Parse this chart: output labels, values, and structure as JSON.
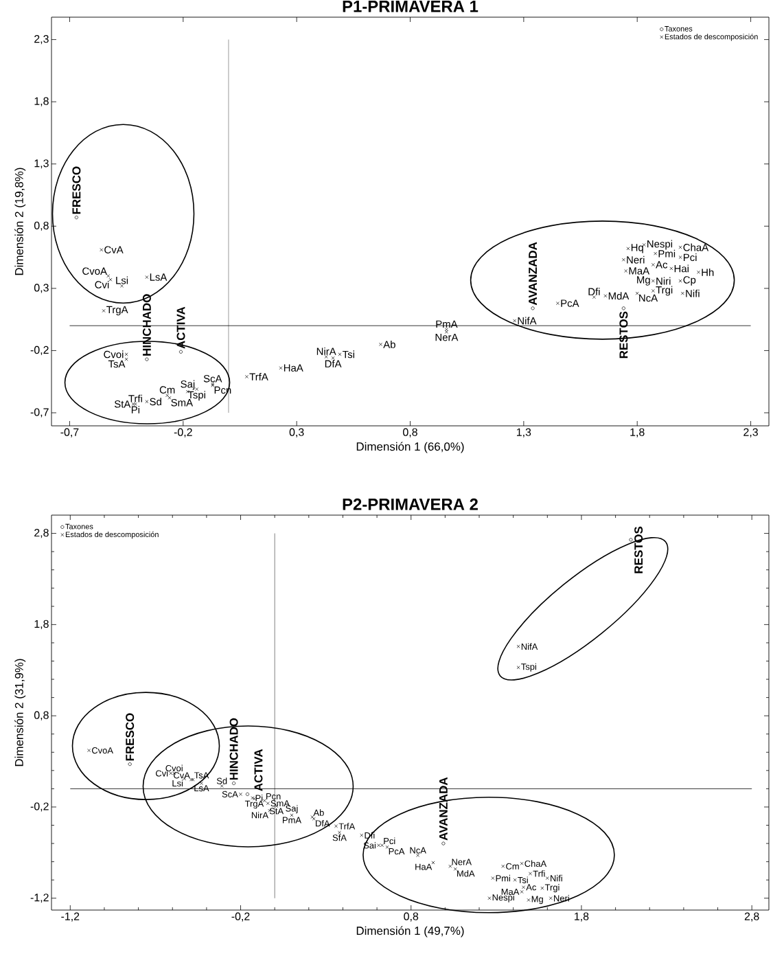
{
  "chart_data": [
    {
      "type": "scatter",
      "title": "P1-PRIMAVERA 1",
      "xlabel": "Dimensión 1 (66,0%)",
      "ylabel": "Dimensión 2 (19,8%)",
      "xlim": [
        -0.78,
        2.38
      ],
      "ylim": [
        -0.805,
        2.48
      ],
      "xticks": [
        {
          "value": -0.7,
          "label": "-0,7"
        },
        {
          "value": -0.2,
          "label": "-0,2"
        },
        {
          "value": 0.3,
          "label": "0,3"
        },
        {
          "value": 0.8,
          "label": "0,8"
        },
        {
          "value": 1.3,
          "label": "1,3"
        },
        {
          "value": 1.8,
          "label": "1,8"
        },
        {
          "value": 2.3,
          "label": "2,3"
        }
      ],
      "yticks": [
        {
          "value": -0.7,
          "label": "-0,7"
        },
        {
          "value": -0.2,
          "label": "-0,2"
        },
        {
          "value": 0.3,
          "label": "0,3"
        },
        {
          "value": 0.8,
          "label": "0,8"
        },
        {
          "value": 1.3,
          "label": "1,3"
        },
        {
          "value": 1.8,
          "label": "1,8"
        },
        {
          "value": 2.3,
          "label": "2,3"
        }
      ],
      "legend": "top right",
      "series": [
        {
          "name": "Taxones",
          "color": "#000000",
          "marker": "circle",
          "x": [
            -0.67,
            -0.36,
            -0.21,
            1.34,
            1.74
          ],
          "values": [
            0.87,
            -0.27,
            -0.21,
            0.14,
            0.14
          ]
        },
        {
          "name": "Estados de descomposición",
          "color": "#000000",
          "marker": "cross",
          "x": [
            -0.56,
            -0.53,
            -0.52,
            -0.47,
            -0.36,
            -0.55,
            -0.45,
            -0.45,
            -0.27,
            -0.26,
            -0.36,
            -0.18,
            -0.14,
            -0.07,
            -0.07,
            -0.42,
            -0.41,
            0.08,
            0.23,
            0.43,
            0.46,
            0.49,
            0.67,
            0.96,
            0.96,
            1.26,
            1.45,
            1.61,
            1.66,
            1.8,
            1.87,
            1.76,
            1.83,
            1.99,
            1.74,
            1.87,
            1.88,
            1.99,
            1.75,
            1.95,
            2.07,
            1.99,
            1.87,
            2.0
          ],
          "values": [
            0.61,
            0.4,
            0.37,
            0.32,
            0.39,
            0.12,
            -0.23,
            -0.27,
            -0.56,
            -0.58,
            -0.61,
            -0.53,
            -0.51,
            -0.47,
            -0.48,
            -0.63,
            -0.63,
            -0.41,
            -0.34,
            -0.25,
            -0.26,
            -0.23,
            -0.15,
            -0.03,
            -0.05,
            0.04,
            0.18,
            0.23,
            0.24,
            0.26,
            0.36,
            0.62,
            0.65,
            0.63,
            0.53,
            0.49,
            0.58,
            0.55,
            0.44,
            0.46,
            0.43,
            0.36,
            0.28,
            0.26
          ]
        }
      ],
      "ref_lines": [
        {
          "axis": "x",
          "value": 0,
          "color": "#808080"
        },
        {
          "axis": "y",
          "value": 0,
          "color": "#000000"
        }
      ],
      "annotations": [
        {
          "text": "FRESCO",
          "x": -0.67,
          "y": 0.87
        },
        {
          "text": "HINCHADO",
          "x": -0.36,
          "y": -0.27
        },
        {
          "text": "ACTIVA",
          "x": -0.21,
          "y": -0.21
        },
        {
          "text": "AVANZADA",
          "x": 1.34,
          "y": 0.14
        },
        {
          "text": "RESTOS",
          "x": 1.74,
          "y": 0.14
        },
        {
          "text": "CvA",
          "x": -0.56,
          "y": 0.61
        },
        {
          "text": "CvoA",
          "x": -0.53,
          "y": 0.4
        },
        {
          "text": "Lsi",
          "x": -0.47,
          "y": 0.32
        },
        {
          "text": "LsA",
          "x": -0.36,
          "y": 0.39
        },
        {
          "text": "Cvi",
          "x": -0.52,
          "y": 0.37
        },
        {
          "text": "TrgA",
          "x": -0.55,
          "y": 0.12
        },
        {
          "text": "Cvoi",
          "x": -0.45,
          "y": -0.23
        },
        {
          "text": "TsA",
          "x": -0.45,
          "y": -0.27
        },
        {
          "text": "Cm",
          "x": -0.27,
          "y": -0.56
        },
        {
          "text": "Saj",
          "x": -0.18,
          "y": -0.53
        },
        {
          "text": "ScA",
          "x": -0.07,
          "y": -0.47
        },
        {
          "text": "Pcn",
          "x": -0.07,
          "y": -0.48
        },
        {
          "text": "Tspi",
          "x": -0.14,
          "y": -0.51
        },
        {
          "text": "Trfi",
          "x": -0.41,
          "y": -0.63
        },
        {
          "text": "StA",
          "x": -0.42,
          "y": -0.63
        },
        {
          "text": "Sd",
          "x": -0.36,
          "y": -0.61
        },
        {
          "text": "SmA",
          "x": -0.26,
          "y": -0.58
        },
        {
          "text": "Pi",
          "x": -0.41,
          "y": -0.63
        },
        {
          "text": "TrfA",
          "x": 0.08,
          "y": -0.41
        },
        {
          "text": "HaA",
          "x": 0.23,
          "y": -0.34
        },
        {
          "text": "NirA",
          "x": 0.43,
          "y": -0.25
        },
        {
          "text": "DfA",
          "x": 0.46,
          "y": -0.26
        },
        {
          "text": "Tsi",
          "x": 0.49,
          "y": -0.23
        },
        {
          "text": "Ab",
          "x": 0.67,
          "y": -0.15
        },
        {
          "text": "PmA",
          "x": 0.96,
          "y": -0.03
        },
        {
          "text": "NerA",
          "x": 0.96,
          "y": -0.05
        },
        {
          "text": "NifA",
          "x": 1.26,
          "y": 0.04
        },
        {
          "text": "PcA",
          "x": 1.45,
          "y": 0.18
        },
        {
          "text": "Dfi",
          "x": 1.61,
          "y": 0.23
        },
        {
          "text": "MdA",
          "x": 1.66,
          "y": 0.24
        },
        {
          "text": "NcA",
          "x": 1.8,
          "y": 0.26
        },
        {
          "text": "Hq",
          "x": 1.76,
          "y": 0.62
        },
        {
          "text": "Nespi",
          "x": 1.83,
          "y": 0.65
        },
        {
          "text": "ChaA",
          "x": 1.99,
          "y": 0.63
        },
        {
          "text": "Neri",
          "x": 1.74,
          "y": 0.53
        },
        {
          "text": "Ac",
          "x": 1.87,
          "y": 0.49
        },
        {
          "text": "Pmi",
          "x": 1.88,
          "y": 0.58
        },
        {
          "text": "Pci",
          "x": 1.99,
          "y": 0.55
        },
        {
          "text": "MaA",
          "x": 1.75,
          "y": 0.44
        },
        {
          "text": "Hai",
          "x": 1.95,
          "y": 0.46
        },
        {
          "text": "Hh",
          "x": 2.07,
          "y": 0.43
        },
        {
          "text": "Mg",
          "x": 1.87,
          "y": 0.36
        },
        {
          "text": "Niri",
          "x": 1.87,
          "y": 0.36
        },
        {
          "text": "Cp",
          "x": 1.99,
          "y": 0.36
        },
        {
          "text": "Trgi",
          "x": 1.87,
          "y": 0.28
        },
        {
          "text": "Nifi",
          "x": 2.0,
          "y": 0.26
        }
      ]
    },
    {
      "type": "scatter",
      "title": "P2-PRIMAVERA 2",
      "xlabel": "Dimensión 1 (49,7%)",
      "ylabel": "Dimensión 2 (31,9%)",
      "xlim": [
        -1.31,
        2.9
      ],
      "ylim": [
        -1.33,
        3.0
      ],
      "xticks": [
        {
          "value": -1.2,
          "label": "-1,2"
        },
        {
          "value": -1.0,
          "label": null
        },
        {
          "value": -0.8,
          "label": null
        },
        {
          "value": -0.6,
          "label": null
        },
        {
          "value": -0.4,
          "label": null
        },
        {
          "value": -0.2,
          "label": "-0,2"
        },
        {
          "value": 0.0,
          "label": null
        },
        {
          "value": 0.2,
          "label": null
        },
        {
          "value": 0.4,
          "label": null
        },
        {
          "value": 0.6,
          "label": null
        },
        {
          "value": 0.8,
          "label": "0,8"
        },
        {
          "value": 1.0,
          "label": null
        },
        {
          "value": 1.2,
          "label": null
        },
        {
          "value": 1.4,
          "label": null
        },
        {
          "value": 1.6,
          "label": null
        },
        {
          "value": 1.8,
          "label": "1,8"
        },
        {
          "value": 2.0,
          "label": null
        },
        {
          "value": 2.2,
          "label": null
        },
        {
          "value": 2.4,
          "label": null
        },
        {
          "value": 2.6,
          "label": null
        },
        {
          "value": 2.8,
          "label": "2,8"
        }
      ],
      "yticks": [
        {
          "value": -1.2,
          "label": "-1,2"
        },
        {
          "value": -1.0,
          "label": null
        },
        {
          "value": -0.8,
          "label": null
        },
        {
          "value": -0.6,
          "label": null
        },
        {
          "value": -0.4,
          "label": null
        },
        {
          "value": -0.2,
          "label": "-0,2"
        },
        {
          "value": 0.0,
          "label": null
        },
        {
          "value": 0.2,
          "label": null
        },
        {
          "value": 0.4,
          "label": null
        },
        {
          "value": 0.6,
          "label": null
        },
        {
          "value": 0.8,
          "label": "0,8"
        },
        {
          "value": 1.0,
          "label": null
        },
        {
          "value": 1.2,
          "label": null
        },
        {
          "value": 1.4,
          "label": null
        },
        {
          "value": 1.6,
          "label": null
        },
        {
          "value": 1.8,
          "label": "1,8"
        },
        {
          "value": 2.0,
          "label": null
        },
        {
          "value": 2.2,
          "label": null
        },
        {
          "value": 2.4,
          "label": null
        },
        {
          "value": 2.6,
          "label": null
        },
        {
          "value": 2.8,
          "label": "2,8"
        }
      ],
      "legend": "top left",
      "series": [
        {
          "name": "Taxones",
          "color": "#000000",
          "marker": "circle",
          "x": [
            -0.85,
            -0.24,
            -0.16,
            0.99,
            2.09
          ],
          "values": [
            0.27,
            0.06,
            -0.06,
            -0.6,
            2.73
          ]
        },
        {
          "name": "Estados de descomposición",
          "color": "#000000",
          "marker": "cross",
          "x": [
            -1.09,
            -0.61,
            -0.59,
            -0.53,
            -0.49,
            -0.48,
            -0.43,
            -0.31,
            -0.2,
            -0.13,
            -0.12,
            -0.06,
            -0.04,
            0.01,
            -0.03,
            0.1,
            0.22,
            0.23,
            0.36,
            0.38,
            0.51,
            0.61,
            0.63,
            0.66,
            0.84,
            0.93,
            1.03,
            1.06,
            1.45,
            1.43,
            1.43,
            1.34,
            1.45,
            1.28,
            1.41,
            1.5,
            1.6,
            1.46,
            1.57,
            1.26,
            1.49,
            1.62
          ],
          "values": [
            0.42,
            0.17,
            0.17,
            0.11,
            0.1,
            0.1,
            0.06,
            0.03,
            -0.06,
            -0.1,
            -0.11,
            -0.13,
            -0.16,
            -0.19,
            -0.24,
            -0.29,
            -0.31,
            -0.33,
            -0.41,
            -0.48,
            -0.51,
            -0.62,
            -0.62,
            -0.64,
            -0.73,
            -0.81,
            -0.85,
            -0.88,
            -1.13,
            1.56,
            1.33,
            -0.85,
            -0.82,
            -0.98,
            -1.0,
            -0.93,
            -0.98,
            -1.08,
            -1.09,
            -1.2,
            -1.22,
            -1.2
          ]
        }
      ],
      "ref_lines": [
        {
          "axis": "x",
          "value": 0,
          "color": "#606060"
        },
        {
          "axis": "y",
          "value": 0,
          "color": "#000000"
        }
      ],
      "annotations": [
        {
          "text": "FRESCO",
          "x": -0.85,
          "y": 0.27
        },
        {
          "text": "HINCHADO",
          "x": -0.24,
          "y": 0.06
        },
        {
          "text": "ACTIVA",
          "x": -0.16,
          "y": -0.06
        },
        {
          "text": "AVANZADA",
          "x": 0.99,
          "y": -0.6
        },
        {
          "text": "RESTOS",
          "x": 2.09,
          "y": 2.73
        },
        {
          "text": "CvoA",
          "x": -1.09,
          "y": 0.42
        },
        {
          "text": "Cvi",
          "x": -0.61,
          "y": 0.17
        },
        {
          "text": "Cvoi",
          "x": -0.59,
          "y": 0.17
        },
        {
          "text": "Lsi",
          "x": -0.53,
          "y": 0.11
        },
        {
          "text": "CvA",
          "x": -0.49,
          "y": 0.1
        },
        {
          "text": "TsA",
          "x": -0.48,
          "y": 0.1
        },
        {
          "text": "LsA",
          "x": -0.43,
          "y": 0.06
        },
        {
          "text": "Sd",
          "x": -0.31,
          "y": 0.03
        },
        {
          "text": "ScA",
          "x": -0.2,
          "y": -0.06
        },
        {
          "text": "Pi",
          "x": -0.13,
          "y": -0.1
        },
        {
          "text": "TrgA",
          "x": -0.12,
          "y": -0.11
        },
        {
          "text": "Pcn",
          "x": -0.06,
          "y": -0.13
        },
        {
          "text": "SmA",
          "x": -0.04,
          "y": -0.16
        },
        {
          "text": "StA",
          "x": 0.01,
          "y": -0.19
        },
        {
          "text": "NirA",
          "x": -0.03,
          "y": -0.24
        },
        {
          "text": "Saj",
          "x": 0.1,
          "y": -0.29
        },
        {
          "text": "PmA",
          "x": 0.1,
          "y": -0.29
        },
        {
          "text": "Ab",
          "x": 0.22,
          "y": -0.31
        },
        {
          "text": "DfA",
          "x": 0.23,
          "y": -0.33
        },
        {
          "text": "TrfA",
          "x": 0.36,
          "y": -0.41
        },
        {
          "text": "SfA",
          "x": 0.38,
          "y": -0.48
        },
        {
          "text": "Dfi",
          "x": 0.51,
          "y": -0.51
        },
        {
          "text": "Sai",
          "x": 0.61,
          "y": -0.62
        },
        {
          "text": "Pci",
          "x": 0.63,
          "y": -0.62
        },
        {
          "text": "PcA",
          "x": 0.66,
          "y": -0.64
        },
        {
          "text": "NcA",
          "x": 0.84,
          "y": -0.73
        },
        {
          "text": "HaA",
          "x": 0.93,
          "y": -0.81
        },
        {
          "text": "NerA",
          "x": 1.03,
          "y": -0.85
        },
        {
          "text": "MdA",
          "x": 1.06,
          "y": -0.88
        },
        {
          "text": "NifA",
          "x": 1.43,
          "y": 1.56
        },
        {
          "text": "Tspi",
          "x": 1.43,
          "y": 1.33
        },
        {
          "text": "MaA",
          "x": 1.45,
          "y": -1.13
        },
        {
          "text": "Cm",
          "x": 1.34,
          "y": -0.85
        },
        {
          "text": "ChaA",
          "x": 1.45,
          "y": -0.82
        },
        {
          "text": "Pmi",
          "x": 1.28,
          "y": -0.98
        },
        {
          "text": "Tsi",
          "x": 1.41,
          "y": -1.0
        },
        {
          "text": "Trfi",
          "x": 1.5,
          "y": -0.93
        },
        {
          "text": "Nifi",
          "x": 1.6,
          "y": -0.98
        },
        {
          "text": "Ac",
          "x": 1.46,
          "y": -1.08
        },
        {
          "text": "Trgi",
          "x": 1.57,
          "y": -1.09
        },
        {
          "text": "Nespi",
          "x": 1.26,
          "y": -1.2
        },
        {
          "text": "Mg",
          "x": 1.49,
          "y": -1.22
        },
        {
          "text": "Neri",
          "x": 1.62,
          "y": -1.2
        }
      ]
    }
  ]
}
